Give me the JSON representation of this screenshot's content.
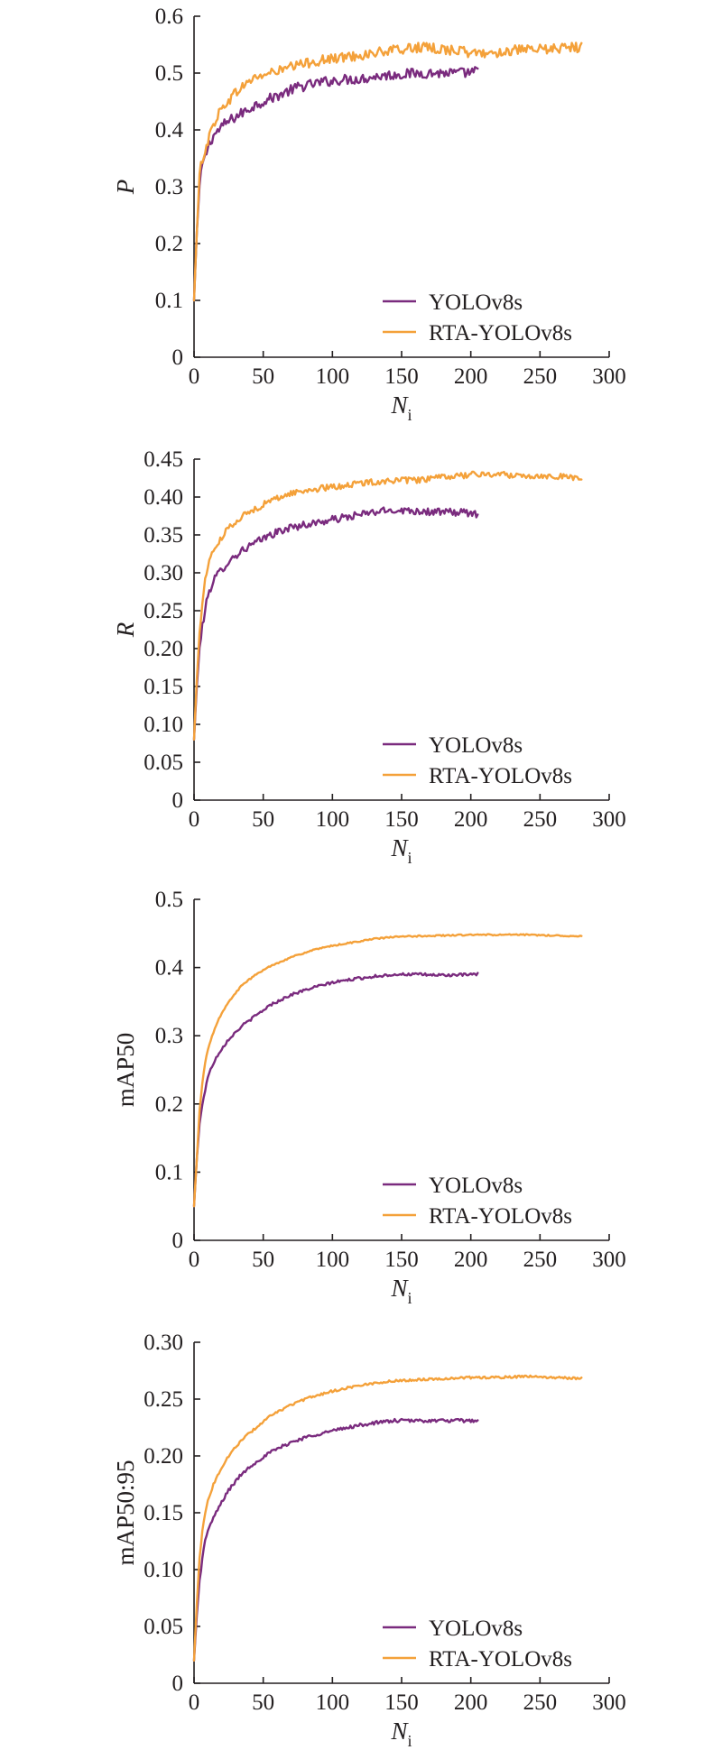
{
  "colors": {
    "YOLOv8s": "#7a2b7e",
    "RTA-YOLOv8s": "#f4a13a",
    "axis": "#231f20"
  },
  "chart_data": [
    {
      "type": "line",
      "ylabel": "P",
      "ylabel_italic": true,
      "xlabel": {
        "main": "N",
        "sub": "i"
      },
      "xlim": [
        0,
        300
      ],
      "ylim": [
        0,
        0.6
      ],
      "x_ticks": [
        "0",
        "50",
        "100",
        "150",
        "200",
        "250",
        "300"
      ],
      "y_ticks": [
        "0",
        "0.1",
        "0.2",
        "0.3",
        "0.4",
        "0.5",
        "0.6"
      ],
      "grid": false,
      "legend_position": "bottom-right",
      "series": [
        {
          "name": "YOLOv8s",
          "points": [
            [
              0,
              0.1
            ],
            [
              2,
              0.22
            ],
            [
              4,
              0.3
            ],
            [
              6,
              0.34
            ],
            [
              8,
              0.35
            ],
            [
              10,
              0.37
            ],
            [
              14,
              0.39
            ],
            [
              18,
              0.4
            ],
            [
              22,
              0.41
            ],
            [
              28,
              0.42
            ],
            [
              35,
              0.43
            ],
            [
              45,
              0.445
            ],
            [
              55,
              0.455
            ],
            [
              65,
              0.465
            ],
            [
              75,
              0.475
            ],
            [
              85,
              0.48
            ],
            [
              95,
              0.485
            ],
            [
              105,
              0.488
            ],
            [
              120,
              0.49
            ],
            [
              135,
              0.495
            ],
            [
              150,
              0.498
            ],
            [
              165,
              0.5
            ],
            [
              180,
              0.5
            ],
            [
              195,
              0.5
            ],
            [
              205,
              0.503
            ]
          ],
          "noise": 0.009
        },
        {
          "name": "RTA-YOLOv8s",
          "points": [
            [
              0,
              0.1
            ],
            [
              2,
              0.22
            ],
            [
              4,
              0.32
            ],
            [
              6,
              0.35
            ],
            [
              10,
              0.38
            ],
            [
              14,
              0.41
            ],
            [
              18,
              0.43
            ],
            [
              24,
              0.45
            ],
            [
              32,
              0.47
            ],
            [
              42,
              0.49
            ],
            [
              55,
              0.5
            ],
            [
              70,
              0.51
            ],
            [
              85,
              0.52
            ],
            [
              100,
              0.525
            ],
            [
              115,
              0.53
            ],
            [
              130,
              0.535
            ],
            [
              145,
              0.54
            ],
            [
              160,
              0.545
            ],
            [
              175,
              0.543
            ],
            [
              190,
              0.54
            ],
            [
              200,
              0.535
            ],
            [
              215,
              0.535
            ],
            [
              230,
              0.54
            ],
            [
              245,
              0.54
            ],
            [
              260,
              0.543
            ],
            [
              270,
              0.545
            ],
            [
              280,
              0.545
            ]
          ],
          "noise": 0.009
        }
      ]
    },
    {
      "type": "line",
      "ylabel": "R",
      "ylabel_italic": true,
      "xlabel": {
        "main": "N",
        "sub": "i"
      },
      "xlim": [
        0,
        300
      ],
      "ylim": [
        0,
        0.45
      ],
      "x_ticks": [
        "0",
        "50",
        "100",
        "150",
        "200",
        "250",
        "300"
      ],
      "y_ticks": [
        "0",
        "0.05",
        "0.10",
        "0.15",
        "0.20",
        "0.25",
        "0.30",
        "0.35",
        "0.40",
        "0.45"
      ],
      "grid": false,
      "legend_position": "bottom-right",
      "series": [
        {
          "name": "YOLOv8s",
          "points": [
            [
              0,
              0.08
            ],
            [
              2,
              0.15
            ],
            [
              4,
              0.2
            ],
            [
              6,
              0.23
            ],
            [
              8,
              0.25
            ],
            [
              10,
              0.27
            ],
            [
              14,
              0.29
            ],
            [
              18,
              0.3
            ],
            [
              25,
              0.315
            ],
            [
              35,
              0.33
            ],
            [
              45,
              0.34
            ],
            [
              55,
              0.35
            ],
            [
              70,
              0.36
            ],
            [
              85,
              0.365
            ],
            [
              100,
              0.37
            ],
            [
              115,
              0.375
            ],
            [
              130,
              0.38
            ],
            [
              145,
              0.383
            ],
            [
              160,
              0.382
            ],
            [
              175,
              0.38
            ],
            [
              190,
              0.38
            ],
            [
              205,
              0.378
            ]
          ],
          "noise": 0.005
        },
        {
          "name": "RTA-YOLOv8s",
          "points": [
            [
              0,
              0.08
            ],
            [
              2,
              0.16
            ],
            [
              4,
              0.22
            ],
            [
              6,
              0.26
            ],
            [
              8,
              0.29
            ],
            [
              10,
              0.31
            ],
            [
              14,
              0.33
            ],
            [
              18,
              0.34
            ],
            [
              25,
              0.36
            ],
            [
              35,
              0.375
            ],
            [
              45,
              0.385
            ],
            [
              55,
              0.395
            ],
            [
              70,
              0.405
            ],
            [
              85,
              0.41
            ],
            [
              100,
              0.413
            ],
            [
              115,
              0.417
            ],
            [
              130,
              0.42
            ],
            [
              145,
              0.422
            ],
            [
              160,
              0.422
            ],
            [
              175,
              0.425
            ],
            [
              190,
              0.428
            ],
            [
              205,
              0.43
            ],
            [
              220,
              0.43
            ],
            [
              240,
              0.428
            ],
            [
              260,
              0.428
            ],
            [
              280,
              0.425
            ]
          ],
          "noise": 0.004
        }
      ]
    },
    {
      "type": "line",
      "ylabel": "mAP50",
      "ylabel_italic": false,
      "xlabel": {
        "main": "N",
        "sub": "i"
      },
      "xlim": [
        0,
        300
      ],
      "ylim": [
        0,
        0.5
      ],
      "x_ticks": [
        "0",
        "50",
        "100",
        "150",
        "200",
        "250",
        "300"
      ],
      "y_ticks": [
        "0",
        "0.1",
        "0.2",
        "0.3",
        "0.4",
        "0.5"
      ],
      "grid": false,
      "legend_position": "bottom-right",
      "series": [
        {
          "name": "YOLOv8s",
          "points": [
            [
              0,
              0.05
            ],
            [
              2,
              0.12
            ],
            [
              4,
              0.17
            ],
            [
              6,
              0.2
            ],
            [
              8,
              0.22
            ],
            [
              10,
              0.24
            ],
            [
              14,
              0.26
            ],
            [
              18,
              0.275
            ],
            [
              25,
              0.295
            ],
            [
              35,
              0.315
            ],
            [
              45,
              0.33
            ],
            [
              55,
              0.345
            ],
            [
              70,
              0.36
            ],
            [
              85,
              0.37
            ],
            [
              100,
              0.378
            ],
            [
              115,
              0.383
            ],
            [
              130,
              0.387
            ],
            [
              145,
              0.39
            ],
            [
              160,
              0.39
            ],
            [
              175,
              0.389
            ],
            [
              190,
              0.389
            ],
            [
              205,
              0.39
            ]
          ],
          "noise": 0.002
        },
        {
          "name": "RTA-YOLOv8s",
          "points": [
            [
              0,
              0.05
            ],
            [
              2,
              0.12
            ],
            [
              4,
              0.19
            ],
            [
              6,
              0.23
            ],
            [
              8,
              0.26
            ],
            [
              10,
              0.28
            ],
            [
              14,
              0.305
            ],
            [
              18,
              0.325
            ],
            [
              25,
              0.35
            ],
            [
              35,
              0.375
            ],
            [
              45,
              0.39
            ],
            [
              55,
              0.402
            ],
            [
              70,
              0.415
            ],
            [
              85,
              0.425
            ],
            [
              100,
              0.432
            ],
            [
              115,
              0.437
            ],
            [
              130,
              0.442
            ],
            [
              145,
              0.445
            ],
            [
              160,
              0.446
            ],
            [
              180,
              0.447
            ],
            [
              200,
              0.448
            ],
            [
              220,
              0.448
            ],
            [
              240,
              0.448
            ],
            [
              260,
              0.447
            ],
            [
              280,
              0.446
            ]
          ],
          "noise": 0.001
        }
      ]
    },
    {
      "type": "line",
      "ylabel": "mAP50:95",
      "ylabel_italic": false,
      "xlabel": {
        "main": "N",
        "sub": "i"
      },
      "xlim": [
        0,
        300
      ],
      "ylim": [
        0,
        0.3
      ],
      "x_ticks": [
        "0",
        "50",
        "100",
        "150",
        "200",
        "250",
        "300"
      ],
      "y_ticks": [
        "0",
        "0.05",
        "0.10",
        "0.15",
        "0.20",
        "0.25",
        "0.30"
      ],
      "grid": false,
      "legend_position": "bottom-right",
      "series": [
        {
          "name": "YOLOv8s",
          "points": [
            [
              0,
              0.02
            ],
            [
              2,
              0.06
            ],
            [
              4,
              0.09
            ],
            [
              6,
              0.11
            ],
            [
              8,
              0.125
            ],
            [
              10,
              0.135
            ],
            [
              14,
              0.145
            ],
            [
              18,
              0.155
            ],
            [
              25,
              0.17
            ],
            [
              35,
              0.185
            ],
            [
              45,
              0.195
            ],
            [
              55,
              0.203
            ],
            [
              70,
              0.212
            ],
            [
              85,
              0.218
            ],
            [
              100,
              0.222
            ],
            [
              115,
              0.226
            ],
            [
              130,
              0.229
            ],
            [
              145,
              0.231
            ],
            [
              160,
              0.231
            ],
            [
              175,
              0.231
            ],
            [
              190,
              0.231
            ],
            [
              205,
              0.231
            ]
          ],
          "noise": 0.0015
        },
        {
          "name": "RTA-YOLOv8s",
          "points": [
            [
              0,
              0.02
            ],
            [
              2,
              0.07
            ],
            [
              4,
              0.11
            ],
            [
              6,
              0.135
            ],
            [
              8,
              0.15
            ],
            [
              10,
              0.16
            ],
            [
              14,
              0.175
            ],
            [
              18,
              0.185
            ],
            [
              25,
              0.2
            ],
            [
              35,
              0.215
            ],
            [
              45,
              0.225
            ],
            [
              55,
              0.235
            ],
            [
              70,
              0.245
            ],
            [
              85,
              0.252
            ],
            [
              100,
              0.257
            ],
            [
              115,
              0.261
            ],
            [
              130,
              0.264
            ],
            [
              145,
              0.266
            ],
            [
              160,
              0.267
            ],
            [
              180,
              0.268
            ],
            [
              200,
              0.269
            ],
            [
              220,
              0.269
            ],
            [
              240,
              0.27
            ],
            [
              260,
              0.269
            ],
            [
              280,
              0.268
            ]
          ],
          "noise": 0.001
        }
      ]
    }
  ]
}
